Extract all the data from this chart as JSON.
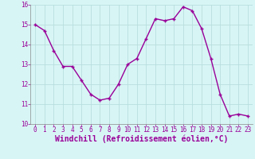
{
  "x": [
    0,
    1,
    2,
    3,
    4,
    5,
    6,
    7,
    8,
    9,
    10,
    11,
    12,
    13,
    14,
    15,
    16,
    17,
    18,
    19,
    20,
    21,
    22,
    23
  ],
  "y": [
    15.0,
    14.7,
    13.7,
    12.9,
    12.9,
    12.2,
    11.5,
    11.2,
    11.3,
    12.0,
    13.0,
    13.3,
    14.3,
    15.3,
    15.2,
    15.3,
    15.9,
    15.7,
    14.8,
    13.3,
    11.5,
    10.4,
    10.5,
    10.4
  ],
  "line_color": "#990099",
  "marker": "+",
  "marker_size": 3,
  "bg_color": "#d8f5f5",
  "grid_color": "#b8dede",
  "xlabel": "Windchill (Refroidissement éolien,°C)",
  "xlabel_color": "#990099",
  "ylim": [
    10,
    16
  ],
  "xlim": [
    -0.5,
    23.5
  ],
  "yticks": [
    10,
    11,
    12,
    13,
    14,
    15,
    16
  ],
  "xticks": [
    0,
    1,
    2,
    3,
    4,
    5,
    6,
    7,
    8,
    9,
    10,
    11,
    12,
    13,
    14,
    15,
    16,
    17,
    18,
    19,
    20,
    21,
    22,
    23
  ],
  "tick_label_color": "#990099",
  "tick_label_fontsize": 5.5,
  "xlabel_fontsize": 7.0,
  "linewidth": 1.0
}
